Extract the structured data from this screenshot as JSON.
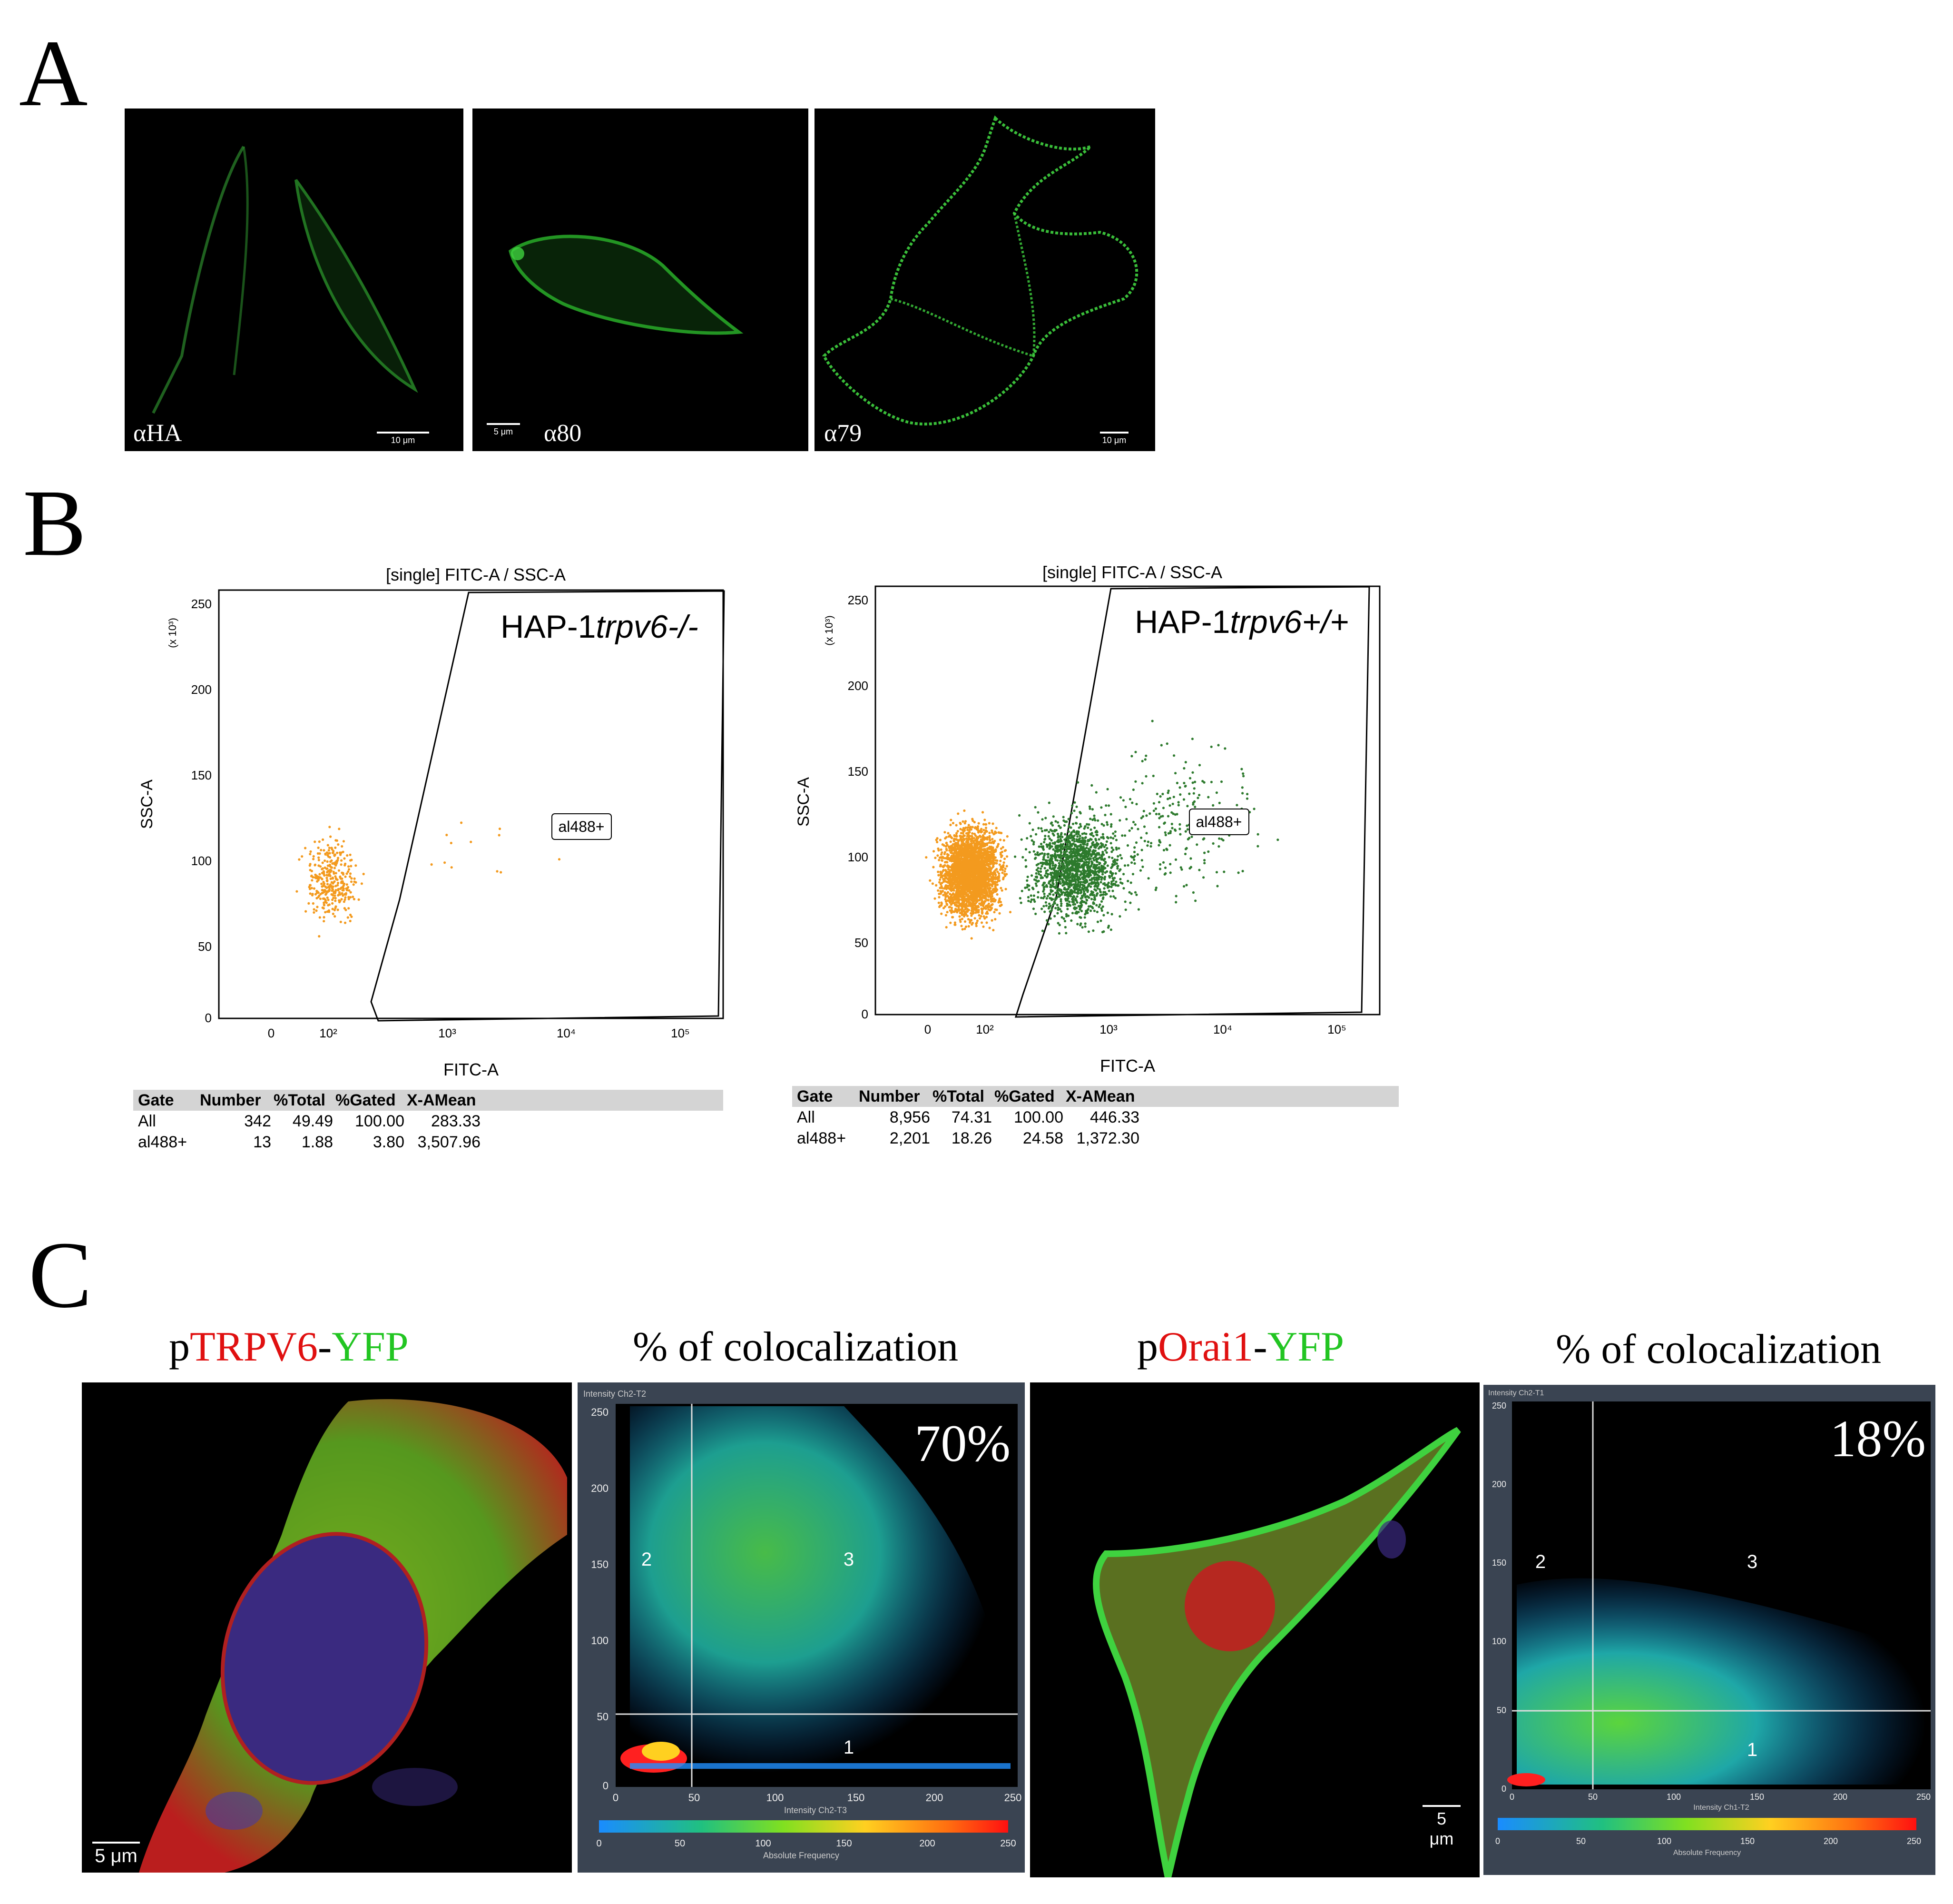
{
  "panels": {
    "A": {
      "letter": "A",
      "images": [
        {
          "label": "αHA",
          "scale": "10 μm"
        },
        {
          "label": "α80",
          "scale": "5 μm"
        },
        {
          "label": "α79",
          "scale": "10 μm"
        }
      ]
    },
    "B": {
      "letter": "B",
      "plots": [
        {
          "title": "[single] FITC-A / SSC-A",
          "sample": "HAP-1",
          "genotype": "trpv6-/-",
          "gate": "al488+",
          "xlabel": "FITC-A",
          "ylabel": "SSC-A",
          "yunit": "(x 10³)",
          "yticks": [
            "0",
            "50",
            "100",
            "150",
            "200",
            "250"
          ],
          "xticks": [
            "0",
            "10²",
            "10³",
            "10⁴",
            "10⁵"
          ],
          "table": {
            "headers": [
              "Gate",
              "Number",
              "%Total",
              "%Gated",
              "X-AMean"
            ],
            "rows": [
              [
                "All",
                "342",
                "49.49",
                "100.00",
                "283.33"
              ],
              [
                "al488+",
                "13",
                "1.88",
                "3.80",
                "3,507.96"
              ]
            ]
          }
        },
        {
          "title": "[single] FITC-A / SSC-A",
          "sample": "HAP-1",
          "genotype": "trpv6+/+",
          "gate": "al488+",
          "xlabel": "FITC-A",
          "ylabel": "SSC-A",
          "yunit": "(x 10³)",
          "yticks": [
            "0",
            "50",
            "100",
            "150",
            "200",
            "250"
          ],
          "xticks": [
            "0",
            "10²",
            "10³",
            "10⁴",
            "10⁵"
          ],
          "table": {
            "headers": [
              "Gate",
              "Number",
              "%Total",
              "%Gated",
              "X-AMean"
            ],
            "rows": [
              [
                "All",
                "8,956",
                "74.31",
                "100.00",
                "446.33"
              ],
              [
                "al488+",
                "2,201",
                "18.26",
                "24.58",
                "1,372.30"
              ]
            ]
          }
        }
      ]
    },
    "C": {
      "letter": "C",
      "left": {
        "title_p": "p",
        "title_red": "TRPV6",
        "title_dash": "-",
        "title_green": "YFP",
        "scale": "5 μm"
      },
      "left_plot": {
        "title": "% of colocalization",
        "percent": "70%",
        "ylabel": "Intensity Ch2-T2",
        "xlabel": "Intensity Ch2-T3",
        "colorbar_label": "Absolute Frequency",
        "yticks": [
          "250",
          "200",
          "150",
          "100",
          "50",
          "0"
        ],
        "xticks": [
          "0",
          "50",
          "100",
          "150",
          "200",
          "250"
        ],
        "cbticks": [
          "0",
          "50",
          "100",
          "150",
          "200",
          "250"
        ],
        "regions": [
          "1",
          "2",
          "3"
        ]
      },
      "right": {
        "title_p": "p",
        "title_red": "Orai1",
        "title_dash": "-",
        "title_green": "YFP",
        "scale": "5 μm"
      },
      "right_plot": {
        "title": "% of colocalization",
        "percent": "18%",
        "ylabel": "Intensity Ch2-T1",
        "xlabel": "Intensity Ch1-T2",
        "colorbar_label": "Absolute Frequency",
        "yticks": [
          "250",
          "200",
          "150",
          "100",
          "50",
          "0"
        ],
        "xticks": [
          "0",
          "50",
          "100",
          "150",
          "200",
          "250"
        ],
        "cbticks": [
          "0",
          "50",
          "100",
          "150",
          "200",
          "250"
        ],
        "regions": [
          "1",
          "2",
          "3"
        ]
      }
    }
  },
  "colors": {
    "cell_green": "#3fd23f",
    "flow_orange": "#f39a1e",
    "flow_green": "#2d7a2d",
    "nucleus": "#3a2a80",
    "membrane_red": "#d01818"
  }
}
